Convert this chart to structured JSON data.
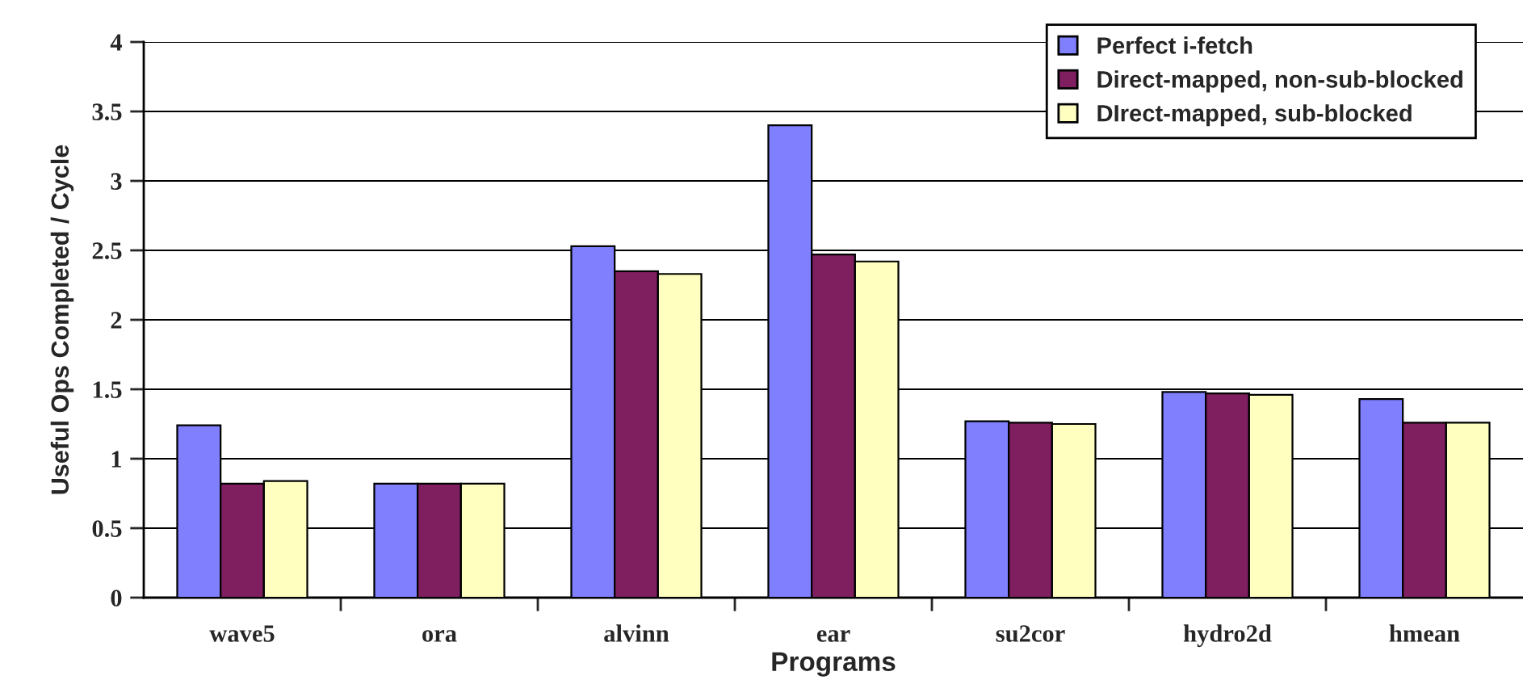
{
  "chart_data": {
    "type": "bar",
    "xlabel": "Programs",
    "ylabel": "Useful Ops Completed / Cycle",
    "categories": [
      "wave5",
      "ora",
      "alvinn",
      "ear",
      "su2cor",
      "hydro2d",
      "hmean"
    ],
    "series": [
      {
        "name": "Perfect i-fetch",
        "color": "#8080ff",
        "values": [
          1.24,
          0.82,
          2.53,
          3.4,
          1.27,
          1.48,
          1.43
        ]
      },
      {
        "name": "Direct-mapped, non-sub-blocked",
        "color": "#7f1f5f",
        "values": [
          0.82,
          0.82,
          2.35,
          2.47,
          1.26,
          1.47,
          1.26
        ]
      },
      {
        "name": "DIrect-mapped, sub-blocked",
        "color": "#ffffc0",
        "values": [
          0.84,
          0.82,
          2.33,
          2.42,
          1.25,
          1.46,
          1.26
        ]
      }
    ],
    "ylim": [
      0,
      4
    ],
    "yticks": [
      0,
      0.5,
      1,
      1.5,
      2,
      2.5,
      3,
      3.5,
      4
    ],
    "grid": "y",
    "legend": "top right"
  }
}
